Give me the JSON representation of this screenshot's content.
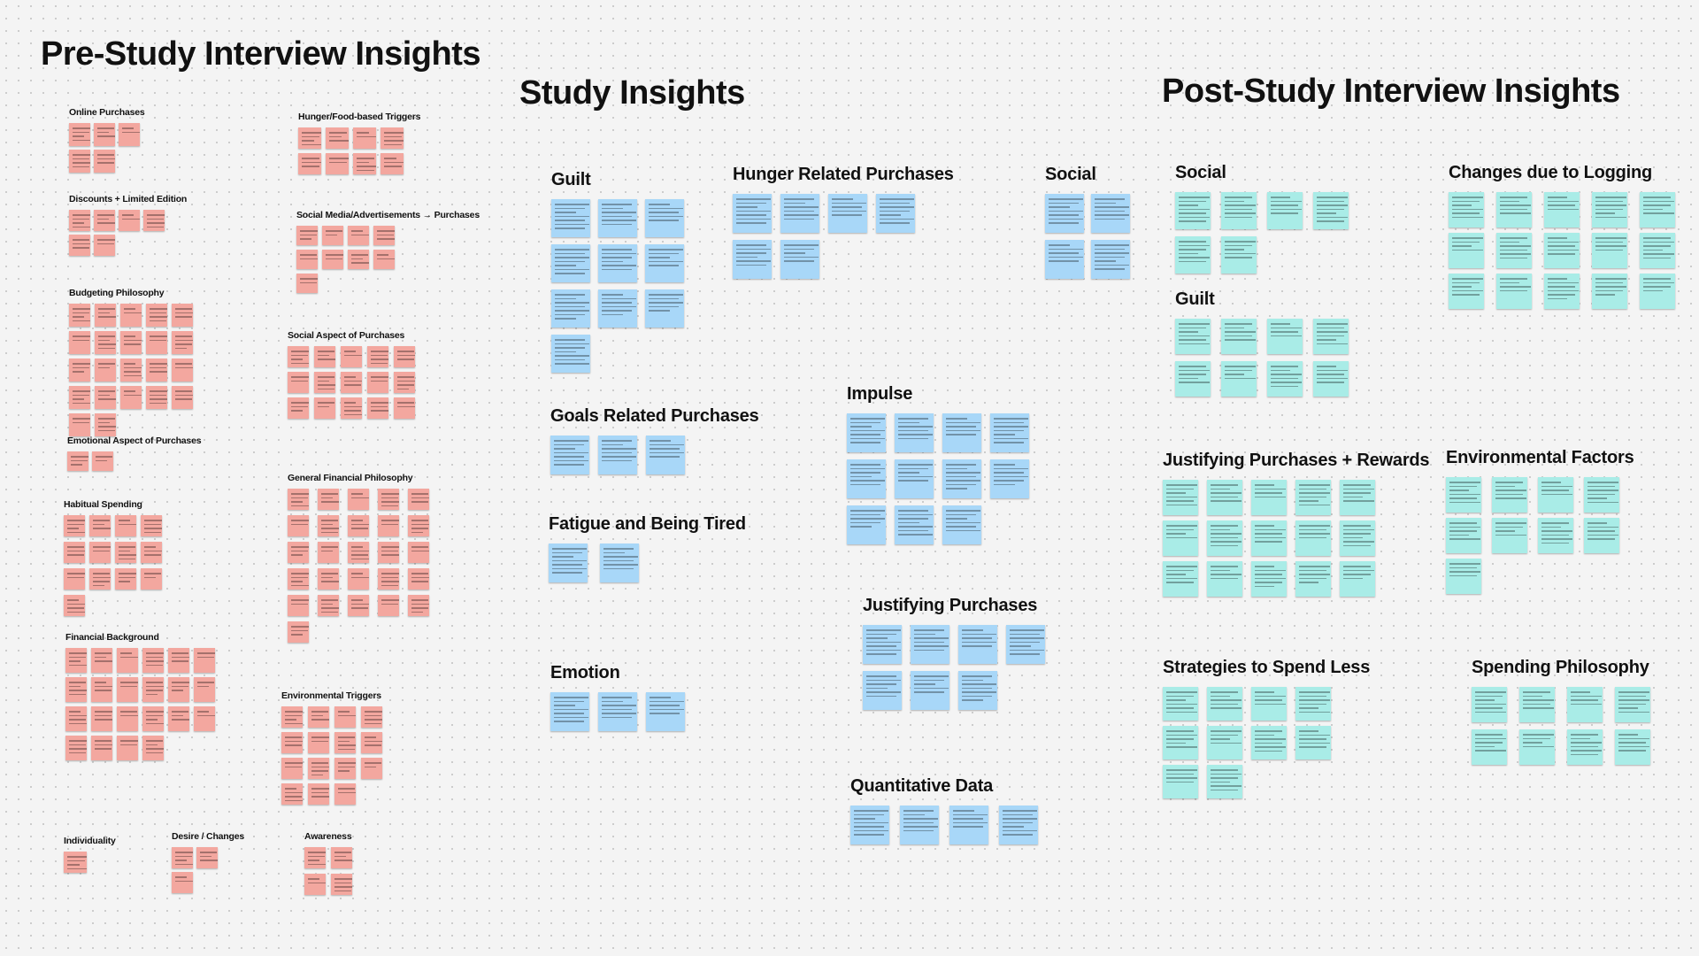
{
  "board": {
    "sections": {
      "pre": "Pre-Study Interview Insights",
      "study": "Study Insights",
      "post": "Post-Study Interview Insights"
    }
  },
  "clusters": {
    "online": "Online Purchases",
    "discounts": "Discounts + Limited Edition",
    "budgeting": "Budgeting Philosophy",
    "emotional": "Emotional Aspect of Purchases",
    "habitual": "Habitual Spending",
    "financial_bg": "Financial Background",
    "individuality": "Individuality",
    "desire": "Desire / Changes",
    "awareness": "Awareness",
    "hunger_food": "Hunger/Food-based Triggers",
    "social_media": "Social Media/Advertisements → Purchases",
    "social_aspect": "Social Aspect of Purchases",
    "general_fin": "General Financial Philosophy",
    "env_triggers": "Environmental Triggers",
    "guilt": "Guilt",
    "hunger_related": "Hunger Related Purchases",
    "social": "Social",
    "goals": "Goals Related Purchases",
    "fatigue": "Fatigue and Being Tired",
    "emotion": "Emotion",
    "impulse": "Impulse",
    "justifying": "Justifying Purchases",
    "quant": "Quantitative Data",
    "post_social": "Social",
    "post_guilt": "Guilt",
    "post_justifying": "Justifying Purchases + Rewards",
    "post_strategies": "Strategies to Spend Less",
    "post_changes": "Changes due to Logging",
    "post_env": "Environmental Factors",
    "post_spending": "Spending Philosophy"
  },
  "colors": {
    "pre_study_notes": "#f3a79f",
    "study_notes": "#a8d7f8",
    "post_study_notes": "#a9ece7",
    "background": "#f4f4f4"
  }
}
